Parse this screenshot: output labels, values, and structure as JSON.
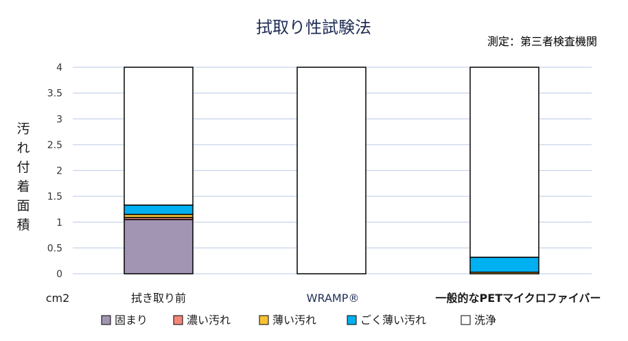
{
  "chart_data": {
    "type": "bar",
    "stacked": true,
    "title": "拭取り性試験法",
    "subtitle": "測定：第三者検査機関",
    "ylabel": "汚れ付着面積",
    "yunit": "cm2",
    "ylim": [
      0,
      4
    ],
    "yticks": [
      "0",
      "0.5",
      "1",
      "1.5",
      "2",
      "2.5",
      "3",
      "3.5",
      "4"
    ],
    "grid": true,
    "legend_position": "bottom",
    "categories": [
      "拭き取り前",
      "WRAMP®",
      "一般的なPETマイクロファイバー"
    ],
    "series": [
      {
        "name": "固まり",
        "color": "#a294b3",
        "values": [
          1.05,
          0,
          0
        ]
      },
      {
        "name": "濃い汚れ",
        "color": "#f4877a",
        "values": [
          0.04,
          0,
          0
        ]
      },
      {
        "name": "薄い汚れ",
        "color": "#f7c234",
        "values": [
          0.06,
          0,
          0.03
        ]
      },
      {
        "name": "ごく薄い汚れ",
        "color": "#00b0f0",
        "values": [
          0.18,
          0,
          0.29
        ]
      },
      {
        "name": "洗浄",
        "color": "#ffffff",
        "values": [
          2.67,
          4.0,
          3.68
        ]
      }
    ]
  }
}
